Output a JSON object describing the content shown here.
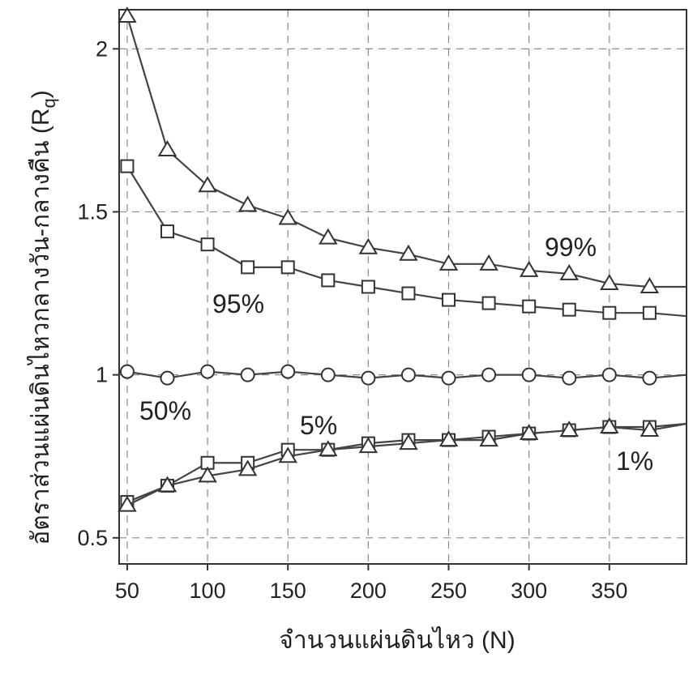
{
  "chart_data": {
    "type": "line",
    "xlabel": "จำนวนแผ่นดินไหว (N)",
    "ylabel": "อัตราส่วนแผ่นดินไหวกลางวัน-กลางคืน (R",
    "ylabel_subscript": "q",
    "ylabel_close": ")",
    "xlim": [
      45,
      398
    ],
    "ylim": [
      0.42,
      2.12
    ],
    "x_ticks": [
      50,
      100,
      150,
      200,
      250,
      300,
      350
    ],
    "x_tick_labels": [
      "50",
      "100",
      "150",
      "200",
      "250",
      "300",
      "350"
    ],
    "y_ticks": [
      0.5,
      1,
      1.5,
      2
    ],
    "y_tick_labels": [
      "0.5",
      "1",
      "1.5",
      "2"
    ],
    "grid": true,
    "x": [
      50,
      75,
      100,
      125,
      150,
      175,
      200,
      225,
      250,
      275,
      300,
      325,
      350,
      375
    ],
    "series": [
      {
        "name": "99%",
        "marker": "triangle",
        "values": [
          2.1,
          1.69,
          1.58,
          1.52,
          1.48,
          1.42,
          1.39,
          1.37,
          1.34,
          1.34,
          1.32,
          1.31,
          1.28,
          1.27
        ],
        "line_end": 1.27
      },
      {
        "name": "95%",
        "marker": "square",
        "values": [
          1.64,
          1.44,
          1.4,
          1.33,
          1.33,
          1.29,
          1.27,
          1.25,
          1.23,
          1.22,
          1.21,
          1.2,
          1.19,
          1.19
        ],
        "line_end": 1.18
      },
      {
        "name": "50%",
        "marker": "circle",
        "values": [
          1.01,
          0.99,
          1.01,
          1.0,
          1.01,
          1.0,
          0.99,
          1.0,
          0.99,
          1.0,
          1.0,
          0.99,
          1.0,
          0.99
        ],
        "line_end": 1.0
      },
      {
        "name": "5%",
        "marker": "square",
        "values": [
          0.61,
          0.66,
          0.73,
          0.73,
          0.77,
          0.77,
          0.79,
          0.8,
          0.8,
          0.81,
          0.82,
          0.83,
          0.84,
          0.84
        ],
        "line_end": 0.85
      },
      {
        "name": "1%",
        "marker": "triangle",
        "values": [
          0.6,
          0.66,
          0.69,
          0.71,
          0.75,
          0.77,
          0.78,
          0.79,
          0.8,
          0.8,
          0.82,
          0.83,
          0.84,
          0.83
        ],
        "line_end": 0.85
      }
    ],
    "series_labels": [
      "99%",
      "95%",
      "50%",
      "5%",
      "1%"
    ]
  }
}
